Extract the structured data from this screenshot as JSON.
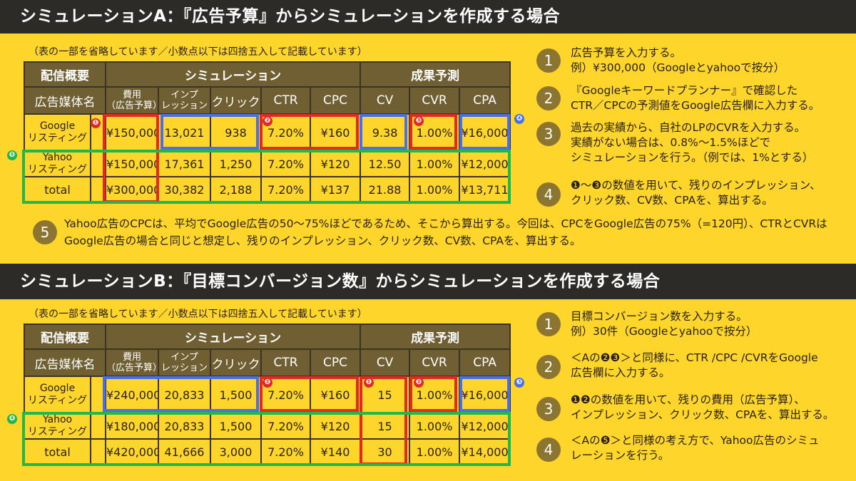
{
  "sectionA": {
    "title": "シミュレーションA：『広告予算』からシミュレーションを作成する場合",
    "note": "（表の一部を省略しています／小数点以下は四捨五入して記載しています）",
    "header": {
      "group_overview": "配信概要",
      "group_sim": "シミュレーション",
      "group_forecast": "成果予測",
      "media_name": "広告媒体名",
      "cost": "費用\n（広告予算）",
      "impressions": "インプ\nレッション",
      "clicks": "クリック",
      "ctr": "CTR",
      "cpc": "CPC",
      "cv": "CV",
      "cvr": "CVR",
      "cpa": "CPA"
    },
    "rows": [
      {
        "media": "Google\nリスティング",
        "cost": "¥150,000",
        "imp": "13,021",
        "clicks": "938",
        "ctr": "7.20%",
        "cpc": "¥160",
        "cv": "9.38",
        "cvr": "1.00%",
        "cpa": "¥16,000"
      },
      {
        "media": "Yahoo\nリスティング",
        "cost": "¥150,000",
        "imp": "17,361",
        "clicks": "1,250",
        "ctr": "7.20%",
        "cpc": "¥120",
        "cv": "12.50",
        "cvr": "1.00%",
        "cpa": "¥12,000"
      },
      {
        "media": "total",
        "cost": "¥300,000",
        "imp": "30,382",
        "clicks": "2,188",
        "ctr": "7.20%",
        "cpc": "¥137",
        "cv": "21.88",
        "cvr": "1.00%",
        "cpa": "¥13,711"
      }
    ],
    "badges": [
      "❶",
      "❷",
      "❸",
      "❹",
      "❺"
    ],
    "steps": [
      {
        "num": "1",
        "lines": [
          "広告予算を入力する。",
          "例）¥300,000（Googleとyahooで按分）"
        ]
      },
      {
        "num": "2",
        "lines": [
          "『Googleキーワードプランナー』で確認した",
          "CTR／CPCの予測値をGoogle広告欄に入力する。"
        ]
      },
      {
        "num": "3",
        "lines": [
          "過去の実績から、自社のLPのCVRを入力する。",
          "実績がない場合は、0.8%〜1.5%ほどで",
          "シミュレーションを行う。（例では、1%とする）"
        ]
      },
      {
        "num": "4",
        "lines": [
          "❶〜❸の数値を用いて、残りのインプレッション、",
          "クリック数、CV数、CPAを、算出する。"
        ]
      }
    ],
    "step5": {
      "num": "5",
      "lines": [
        "Yahoo広告のCPCは、平均でGoogle広告の50〜75%ほどであるため、そこから算出する。今回は、CPCをGoogle広告の75%（=120円）、CTRとCVRは",
        "Google広告の場合と同じと想定し、残りのインプレッション、クリック数、CV数、CPAを、算出する。"
      ]
    }
  },
  "sectionB": {
    "title": "シミュレーションB：『目標コンバージョン数』からシミュレーションを作成する場合",
    "note": "（表の一部を省略しています／小数点以下は四捨五入して記載しています）",
    "header": {
      "group_overview": "配信概要",
      "group_sim": "シミュレーション",
      "group_forecast": "成果予測",
      "media_name": "広告媒体名",
      "cost": "費用\n（広告予算）",
      "impressions": "インプ\nレッション",
      "clicks": "クリック",
      "ctr": "CTR",
      "cpc": "CPC",
      "cv": "CV",
      "cvr": "CVR",
      "cpa": "CPA"
    },
    "rows": [
      {
        "media": "Google\nリスティング",
        "cost": "¥240,000",
        "imp": "20,833",
        "clicks": "1,500",
        "ctr": "7.20%",
        "cpc": "¥160",
        "cv": "15",
        "cvr": "1.00%",
        "cpa": "¥16,000"
      },
      {
        "media": "Yahoo\nリスティング",
        "cost": "¥180,000",
        "imp": "20,833",
        "clicks": "1,500",
        "ctr": "7.20%",
        "cpc": "¥120",
        "cv": "15",
        "cvr": "1.00%",
        "cpa": "¥12,000"
      },
      {
        "media": "total",
        "cost": "¥420,000",
        "imp": "41,666",
        "clicks": "3,000",
        "ctr": "7.20%",
        "cpc": "¥140",
        "cv": "30",
        "cvr": "1.00%",
        "cpa": "¥14,000"
      }
    ],
    "badges": [
      "❶",
      "❷",
      "❷",
      "❸",
      "❹"
    ],
    "steps": [
      {
        "num": "1",
        "lines": [
          "目標コンバージョン数を入力する。",
          "例）30件（Googleとyahooで按分）"
        ]
      },
      {
        "num": "2",
        "lines": [
          "＜Aの❷❸＞と同様に、CTR /CPC /CVRをGoogle",
          "広告欄に入力する。"
        ]
      },
      {
        "num": "3",
        "lines": [
          "❶❷の数値を用いて、残りの費用（広告予算）、",
          "インプレッション、クリック数、CPAを、算出する。"
        ]
      },
      {
        "num": "4",
        "lines": [
          "＜Aの❺＞と同様の考え方で、Yahoo広告のシミュ",
          "レーションを行う。"
        ]
      }
    ]
  },
  "colors": {
    "background": "#fdd52b",
    "banner": "#2d2b28",
    "header_cell": "#6f5f32",
    "step_circle": "#8b7530",
    "red": "#e02a22",
    "blue": "#4a6fe6",
    "green": "#1fb84a"
  }
}
